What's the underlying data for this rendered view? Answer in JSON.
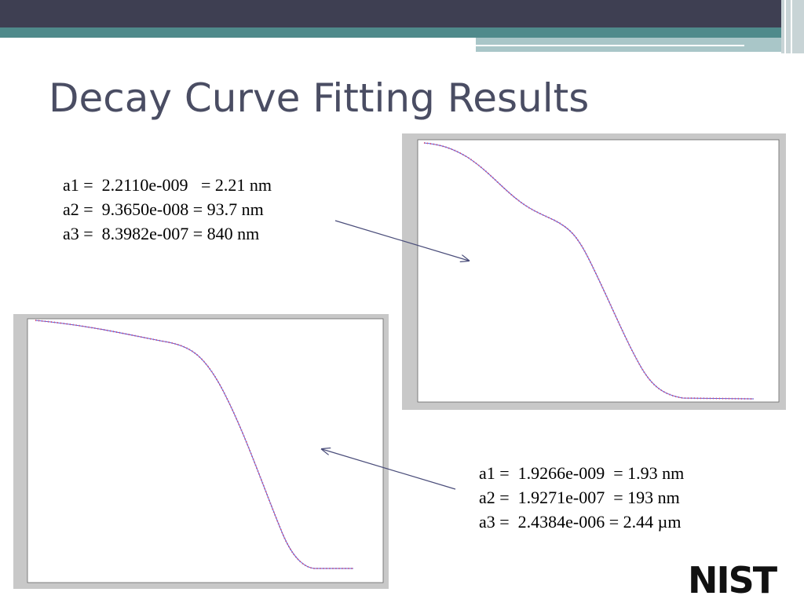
{
  "header": {
    "title": "Decay Curve Fitting Results"
  },
  "fits": [
    {
      "lines": [
        "a1 =  2.2110e-009   = 2.21 nm",
        "a2 =  9.3650e-008 = 93.7 nm",
        "a3 =  8.3982e-007 = 840 nm"
      ]
    },
    {
      "lines": [
        "a1 =  1.9266e-009  = 1.93 nm",
        "a2 =  1.9271e-007  = 193 nm",
        "a3 =  2.4384e-006 = 2.44 µm"
      ]
    }
  ],
  "logo": "NIST"
}
